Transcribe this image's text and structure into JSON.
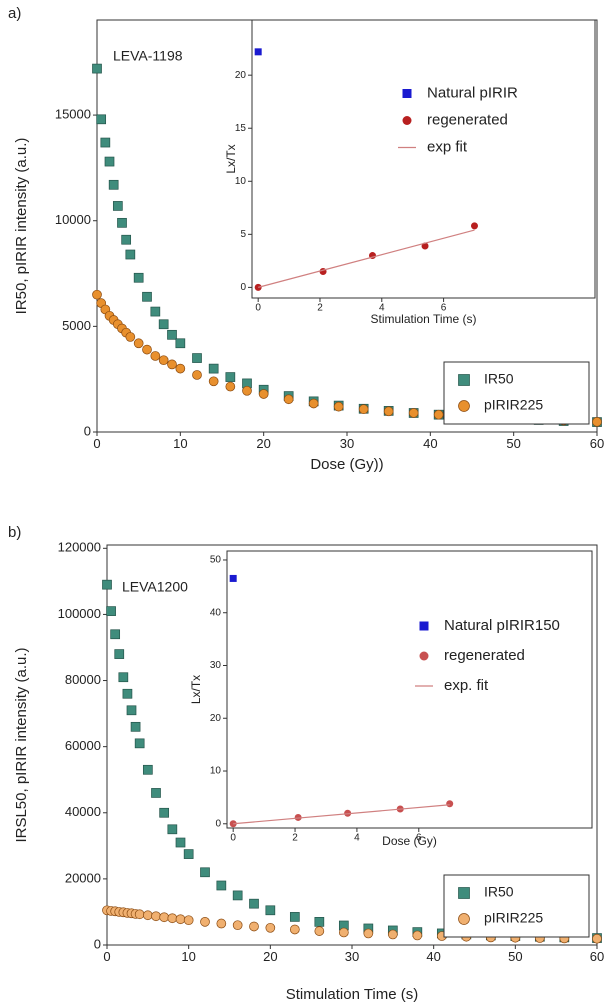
{
  "chart_data": [
    {
      "type": "scatter",
      "panel_label": "a)",
      "annotation": "LEVA-1198",
      "xlabel": "Dose (Gy))",
      "ylabel": "IR50, pIRIR intensity (a.u.)",
      "xlim": [
        0,
        60
      ],
      "xticks": [
        0,
        10,
        20,
        30,
        40,
        50,
        60
      ],
      "ylim": [
        0,
        19500
      ],
      "yticks": [
        0,
        5000,
        10000,
        15000
      ],
      "legend": "lower right",
      "series": [
        {
          "name": "IR50",
          "color": "#3f8c7c",
          "marker": "square",
          "x": [
            0,
            0.5,
            1,
            1.5,
            2,
            2.5,
            3,
            3.5,
            4,
            5,
            6,
            7,
            8,
            9,
            10,
            12,
            14,
            16,
            18,
            20,
            23,
            26,
            29,
            32,
            35,
            38,
            41,
            44,
            47,
            50,
            53,
            56,
            60
          ],
          "values": [
            17200,
            14800,
            13700,
            12800,
            11700,
            10700,
            9900,
            9100,
            8400,
            7300,
            6400,
            5700,
            5100,
            4600,
            4200,
            3500,
            3000,
            2600,
            2300,
            2000,
            1700,
            1450,
            1250,
            1100,
            1000,
            900,
            820,
            750,
            680,
            620,
            570,
            520,
            470
          ]
        },
        {
          "name": "pIRIR225",
          "color": "#e8902e",
          "marker": "circle",
          "x": [
            0,
            0.5,
            1,
            1.5,
            2,
            2.5,
            3,
            3.5,
            4,
            5,
            6,
            7,
            8,
            9,
            10,
            12,
            14,
            16,
            18,
            20,
            23,
            26,
            29,
            32,
            35,
            38,
            41,
            44,
            47,
            50,
            53,
            56,
            60
          ],
          "values": [
            6500,
            6100,
            5800,
            5500,
            5300,
            5100,
            4900,
            4700,
            4500,
            4200,
            3900,
            3600,
            3400,
            3200,
            3000,
            2700,
            2400,
            2150,
            1950,
            1800,
            1550,
            1350,
            1200,
            1080,
            980,
            900,
            820,
            760,
            700,
            640,
            590,
            540,
            480
          ]
        }
      ]
    },
    {
      "type": "scatter",
      "xlabel": "Stimulation Time (s)",
      "ylabel": "Lx/Tx",
      "xlim": [
        -0.2,
        10.9
      ],
      "xticks": [
        0,
        2,
        4,
        6
      ],
      "ylim": [
        -1,
        25.2
      ],
      "yticks": [
        0,
        5,
        10,
        15,
        20
      ],
      "legend": "upper right",
      "series": [
        {
          "name": "Natural pIRIR",
          "color": "#1a1ad0",
          "marker": "square",
          "x": [
            0
          ],
          "values": [
            22.2
          ]
        },
        {
          "name": "regenerated",
          "color": "#b82020",
          "marker": "circle",
          "x": [
            0,
            2.1,
            3.7,
            5.4,
            7.0
          ],
          "values": [
            0,
            1.5,
            3.0,
            3.9,
            5.8
          ]
        },
        {
          "name": "exp fit",
          "color": "#d08080",
          "marker": "line",
          "x": [
            0,
            7.0
          ],
          "values": [
            0,
            5.4
          ]
        }
      ]
    },
    {
      "type": "scatter",
      "panel_label": "b)",
      "annotation": "LEVA1200",
      "xlabel": "Stimulation Time (s)",
      "ylabel": "IRSL50, pIRIR intensity (a.u.)",
      "xlim": [
        0,
        60
      ],
      "xticks": [
        0,
        10,
        20,
        30,
        40,
        50,
        60
      ],
      "ylim": [
        0,
        121000
      ],
      "yticks": [
        0,
        20000,
        40000,
        60000,
        80000,
        100000,
        120000
      ],
      "legend": "lower right",
      "series": [
        {
          "name": "IR50",
          "color": "#3f8c7c",
          "marker": "square",
          "x": [
            0,
            0.5,
            1,
            1.5,
            2,
            2.5,
            3,
            3.5,
            4,
            5,
            6,
            7,
            8,
            9,
            10,
            12,
            14,
            16,
            18,
            20,
            23,
            26,
            29,
            32,
            35,
            38,
            41,
            44,
            47,
            50,
            53,
            56,
            60
          ],
          "values": [
            109000,
            101000,
            94000,
            88000,
            81000,
            76000,
            71000,
            66000,
            61000,
            53000,
            46000,
            40000,
            35000,
            31000,
            27500,
            22000,
            18000,
            15000,
            12500,
            10500,
            8500,
            7000,
            5900,
            5000,
            4400,
            3900,
            3500,
            3200,
            2900,
            2700,
            2500,
            2300,
            2100
          ]
        },
        {
          "name": "pIRIR225",
          "color": "#f0b070",
          "marker": "circle",
          "x": [
            0,
            0.5,
            1,
            1.5,
            2,
            2.5,
            3,
            3.5,
            4,
            5,
            6,
            7,
            8,
            9,
            10,
            12,
            14,
            16,
            18,
            20,
            23,
            26,
            29,
            32,
            35,
            38,
            41,
            44,
            47,
            50,
            53,
            56,
            60
          ],
          "values": [
            10500,
            10300,
            10200,
            10000,
            9900,
            9700,
            9600,
            9400,
            9300,
            9000,
            8700,
            8400,
            8100,
            7800,
            7500,
            7000,
            6500,
            6000,
            5600,
            5200,
            4700,
            4200,
            3800,
            3500,
            3200,
            2900,
            2700,
            2500,
            2300,
            2200,
            2100,
            2000,
            1900
          ]
        }
      ]
    },
    {
      "type": "scatter",
      "xlabel": "Dose (Gy)",
      "ylabel": "Lx/Tx",
      "xlim": [
        -0.2,
        11.6
      ],
      "xticks": [
        0,
        2,
        4,
        6
      ],
      "ylim": [
        -0.8,
        51.7
      ],
      "yticks": [
        0,
        10,
        20,
        30,
        40,
        50
      ],
      "legend": "upper right",
      "series": [
        {
          "name": "Natural pIRIR150",
          "color": "#1a1ad0",
          "marker": "square",
          "x": [
            0
          ],
          "values": [
            46.5
          ]
        },
        {
          "name": "regenerated",
          "color": "#c85050",
          "marker": "circle",
          "x": [
            0,
            2.1,
            3.7,
            5.4,
            7.0
          ],
          "values": [
            0,
            1.2,
            2.0,
            2.8,
            3.8
          ]
        },
        {
          "name": "exp. fit",
          "color": "#d08080",
          "marker": "line",
          "x": [
            0,
            7.0
          ],
          "values": [
            0,
            3.6
          ]
        }
      ]
    }
  ]
}
